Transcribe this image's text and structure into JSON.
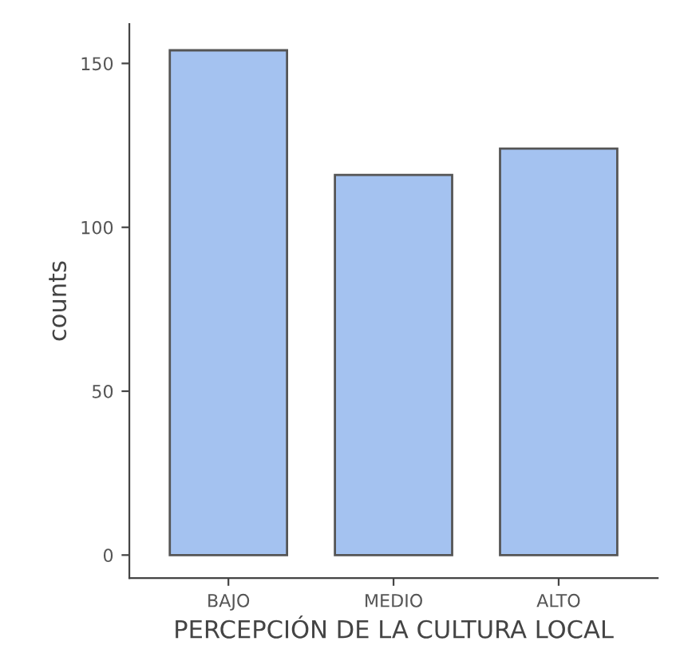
{
  "chart_data": {
    "type": "bar",
    "xlabel": "PERCEPCIÓN DE LA CULTURA LOCAL",
    "ylabel": "counts",
    "categories": [
      "BAJO",
      "MEDIO",
      "ALTO"
    ],
    "values": [
      154,
      116,
      124
    ],
    "color": "#a4c2f0",
    "ylim": [
      -7,
      162
    ],
    "yticks": [
      0,
      50,
      100,
      150
    ],
    "grid": false
  }
}
